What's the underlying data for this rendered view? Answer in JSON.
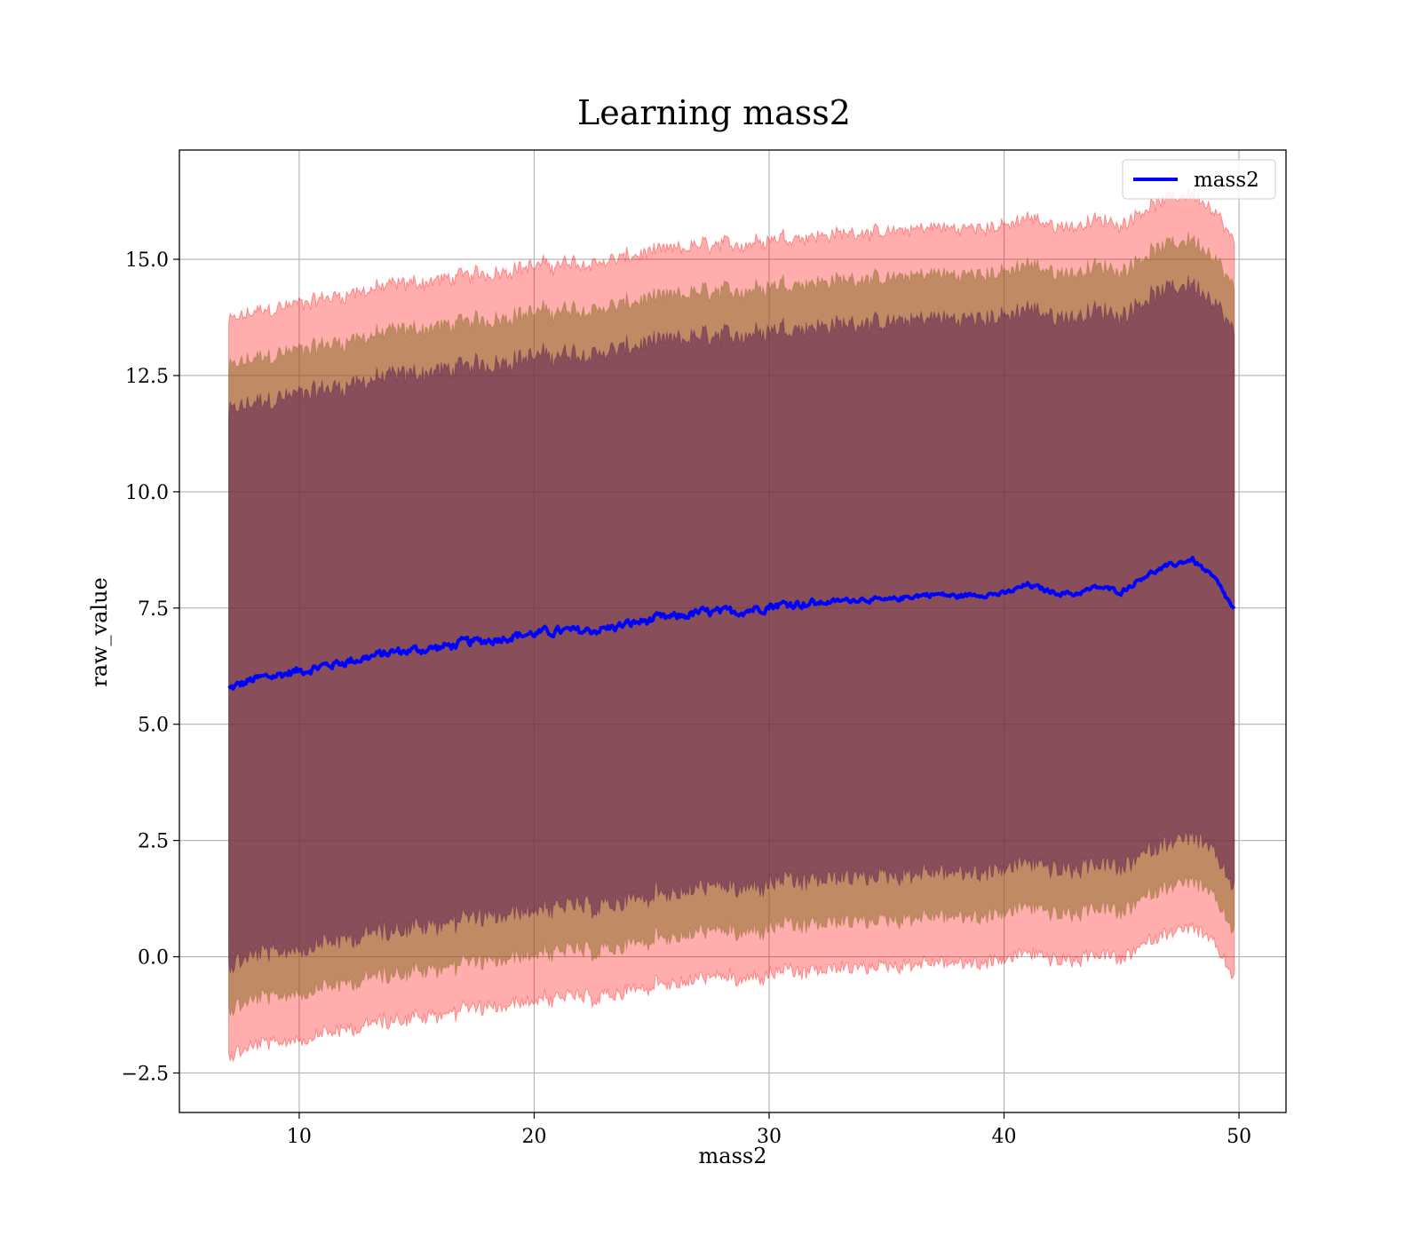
{
  "chart_data": {
    "type": "line",
    "title": "Learning mass2",
    "xlabel": "mass2",
    "ylabel": "raw_value",
    "xlim": [
      4.9,
      52.0
    ],
    "ylim": [
      -3.35,
      17.35
    ],
    "xticks": [
      10,
      20,
      30,
      40,
      50
    ],
    "yticks": [
      -2.5,
      0.0,
      2.5,
      5.0,
      7.5,
      10.0,
      12.5,
      15.0
    ],
    "ytick_labels": [
      "−2.5",
      "0.0",
      "2.5",
      "5.0",
      "7.5",
      "10.0",
      "12.5",
      "15.0"
    ],
    "grid": true,
    "legend_position": "top-right",
    "colors": {
      "mean_line": "#0000ff",
      "band_outer": "#ff0000",
      "band_middle": "#8c6e28",
      "band_inner": "#5a1e50"
    },
    "series": [
      {
        "name": "mass2",
        "x": [
          7.0,
          8.0,
          9.0,
          10.0,
          11.0,
          12.0,
          13.0,
          14.0,
          15.0,
          16.0,
          17.0,
          18.0,
          19.0,
          20.0,
          21.0,
          22.0,
          23.0,
          24.0,
          25.0,
          26.0,
          27.0,
          28.0,
          29.0,
          30.0,
          31.0,
          32.0,
          33.0,
          34.0,
          35.0,
          36.0,
          37.0,
          38.0,
          39.0,
          40.0,
          41.0,
          42.0,
          43.0,
          44.0,
          45.0,
          46.0,
          47.0,
          48.0,
          49.0,
          49.8
        ],
        "y": [
          5.75,
          5.95,
          6.05,
          6.15,
          6.25,
          6.35,
          6.45,
          6.55,
          6.6,
          6.65,
          6.75,
          6.8,
          6.9,
          6.95,
          7.0,
          7.0,
          7.05,
          7.15,
          7.25,
          7.3,
          7.4,
          7.4,
          7.45,
          7.55,
          7.6,
          7.6,
          7.65,
          7.7,
          7.65,
          7.75,
          7.8,
          7.75,
          7.8,
          7.8,
          8.0,
          7.85,
          7.8,
          7.95,
          7.85,
          8.2,
          8.4,
          8.55,
          8.1,
          7.45
        ]
      }
    ],
    "bands": [
      {
        "sigma": 3,
        "color": "outer",
        "half_width": 7.9
      },
      {
        "sigma": 2,
        "color": "middle",
        "half_width": 6.9
      },
      {
        "sigma": 1,
        "color": "inner",
        "half_width": 5.95
      }
    ]
  }
}
